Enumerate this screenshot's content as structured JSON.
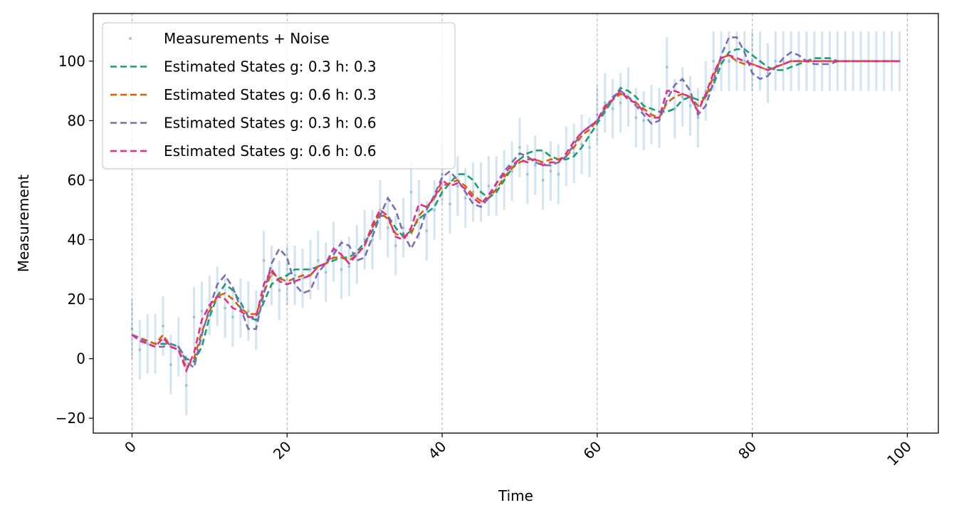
{
  "chart_data": {
    "type": "line",
    "xlabel": "Time",
    "ylabel": "Measurement",
    "xlim": [
      -5,
      104
    ],
    "ylim": [
      -25,
      116
    ],
    "xticks": [
      0,
      20,
      40,
      60,
      80,
      100
    ],
    "yticks": [
      -20,
      0,
      20,
      40,
      60,
      80,
      100
    ],
    "xtick_labels": [
      "0",
      "20",
      "40",
      "60",
      "80",
      "100"
    ],
    "ytick_labels": [
      "−20",
      "0",
      "20",
      "40",
      "60",
      "80",
      "100"
    ],
    "xtick_rotation_deg": 45,
    "grid": "vertical dashed at x ticks",
    "legend_position": "upper-left",
    "measurements": {
      "name": "Measurements + Noise",
      "color": "#1f77b4",
      "error_half_width": 10,
      "x": [
        0,
        1,
        2,
        3,
        4,
        5,
        6,
        7,
        8,
        9,
        10,
        11,
        12,
        13,
        14,
        15,
        16,
        17,
        18,
        19,
        20,
        21,
        22,
        23,
        24,
        25,
        26,
        27,
        28,
        29,
        30,
        31,
        32,
        33,
        34,
        35,
        36,
        37,
        38,
        39,
        40,
        41,
        42,
        43,
        44,
        45,
        46,
        47,
        48,
        49,
        50,
        51,
        52,
        53,
        54,
        55,
        56,
        57,
        58,
        59,
        60,
        61,
        62,
        63,
        64,
        65,
        66,
        67,
        68,
        69,
        70,
        71,
        72,
        73,
        74,
        75,
        76,
        77,
        78,
        79,
        80,
        81,
        82,
        83,
        84,
        85,
        86,
        87,
        88,
        89,
        90,
        91,
        92,
        93,
        94,
        95,
        96,
        97,
        98,
        99
      ],
      "y": [
        10,
        3,
        5,
        5,
        11,
        -2,
        4,
        -9,
        14,
        16,
        18,
        21,
        17,
        14,
        17,
        16,
        13,
        33,
        28,
        23,
        28,
        28,
        27,
        30,
        33,
        29,
        36,
        30,
        31,
        35,
        40,
        40,
        50,
        44,
        38,
        44,
        56,
        50,
        43,
        50,
        62,
        52,
        58,
        54,
        56,
        56,
        58,
        58,
        60,
        63,
        71,
        62,
        65,
        60,
        63,
        62,
        68,
        69,
        72,
        71,
        82,
        86,
        84,
        86,
        88,
        81,
        80,
        82,
        81,
        98,
        84,
        88,
        85,
        81,
        90,
        100,
        100,
        100,
        100,
        100,
        100,
        100,
        96,
        100,
        100,
        100,
        100,
        100,
        100,
        100,
        100,
        100,
        100,
        100,
        100,
        100,
        100,
        100,
        100,
        100
      ]
    },
    "series": [
      {
        "name": "Estimated States g: 0.3 h: 0.3",
        "color": "#1b9e77",
        "values": [
          8,
          7,
          6,
          5,
          5,
          5,
          4,
          0,
          -1,
          4,
          14,
          21,
          25,
          23,
          19,
          14,
          13,
          19,
          25,
          27,
          28,
          30,
          30,
          30,
          31,
          32,
          33,
          34,
          34,
          36,
          39,
          43,
          48,
          48,
          44,
          41,
          43,
          47,
          49,
          51,
          56,
          59,
          62,
          62,
          60,
          56,
          54,
          56,
          60,
          64,
          67,
          69,
          70,
          70,
          68,
          67,
          67,
          68,
          71,
          75,
          79,
          83,
          87,
          91,
          90,
          88,
          85,
          84,
          83,
          83,
          84,
          87,
          88,
          87,
          88,
          92,
          99,
          103,
          104,
          104,
          102,
          100,
          98,
          97,
          97,
          98,
          99,
          100,
          101,
          101,
          101,
          100,
          100,
          100,
          100,
          100,
          100,
          100,
          100,
          100
        ]
      },
      {
        "name": "Estimated States g: 0.6 h: 0.3",
        "color": "#d95f02",
        "values": [
          8,
          7,
          6,
          5,
          8,
          4,
          3,
          -3,
          0,
          9,
          16,
          21,
          22,
          20,
          17,
          15,
          15,
          22,
          29,
          27,
          26,
          27,
          28,
          28,
          31,
          32,
          34,
          34,
          33,
          35,
          38,
          44,
          49,
          47,
          42,
          41,
          42,
          48,
          51,
          54,
          58,
          59,
          60,
          58,
          55,
          53,
          54,
          57,
          61,
          64,
          66,
          67,
          67,
          66,
          67,
          67,
          68,
          71,
          75,
          77,
          80,
          84,
          87,
          89,
          88,
          86,
          84,
          82,
          81,
          86,
          88,
          89,
          88,
          85,
          88,
          95,
          101,
          102,
          100,
          99,
          99,
          98,
          97,
          98,
          99,
          100,
          100,
          100,
          100,
          100,
          100,
          100,
          100,
          100,
          100,
          100,
          100,
          100,
          100,
          100
        ]
      },
      {
        "name": "Estimated States g: 0.3 h: 0.6",
        "color": "#7570b3",
        "values": [
          8,
          7,
          5,
          4,
          4,
          5,
          4,
          -1,
          -3,
          8,
          17,
          25,
          28,
          24,
          17,
          10,
          10,
          22,
          32,
          37,
          34,
          25,
          22,
          23,
          29,
          32,
          35,
          39,
          38,
          33,
          34,
          41,
          48,
          54,
          50,
          42,
          37,
          42,
          50,
          55,
          61,
          63,
          60,
          56,
          52,
          51,
          54,
          59,
          63,
          66,
          69,
          68,
          66,
          65,
          65,
          66,
          68,
          72,
          76,
          78,
          80,
          84,
          88,
          90,
          88,
          85,
          82,
          79,
          80,
          87,
          92,
          94,
          90,
          82,
          85,
          93,
          102,
          108,
          108,
          103,
          96,
          94,
          95,
          98,
          101,
          103,
          102,
          100,
          99,
          99,
          99,
          100,
          100,
          100,
          100,
          100,
          100,
          100,
          100,
          100
        ]
      },
      {
        "name": "Estimated States g: 0.6 h: 0.6",
        "color": "#e7298a",
        "values": [
          8,
          6,
          5,
          4,
          7,
          4,
          3,
          -4,
          2,
          13,
          18,
          21,
          20,
          17,
          16,
          14,
          14,
          25,
          30,
          26,
          25,
          26,
          27,
          28,
          31,
          32,
          37,
          35,
          32,
          35,
          38,
          45,
          50,
          48,
          41,
          40,
          44,
          52,
          51,
          54,
          60,
          58,
          59,
          57,
          54,
          52,
          55,
          59,
          62,
          65,
          67,
          66,
          67,
          65,
          66,
          66,
          69,
          73,
          76,
          78,
          80,
          85,
          87,
          90,
          87,
          86,
          83,
          81,
          81,
          90,
          90,
          89,
          88,
          83,
          89,
          96,
          101,
          102,
          101,
          100,
          99,
          98,
          97,
          98,
          99,
          100,
          100,
          100,
          100,
          100,
          100,
          100,
          100,
          100,
          100,
          100,
          100,
          100,
          100,
          100
        ]
      }
    ]
  }
}
